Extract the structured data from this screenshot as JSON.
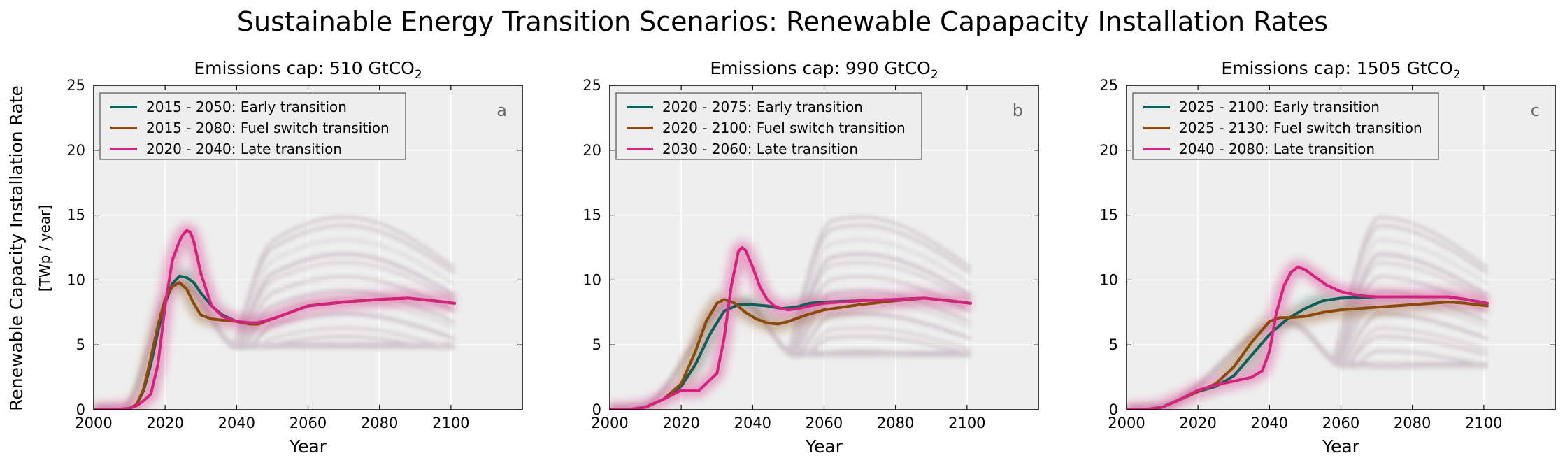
{
  "figure": {
    "title": "Sustainable Energy Transition Scenarios: Renewable Capapacity Installation Rates",
    "ylabel_main": "Renewable Capacity Installation Rate",
    "ylabel_unit": "[TWp / year]"
  },
  "colors": {
    "early": "#0f5e5a",
    "fuel": "#8a4a0a",
    "late": "#d4237f",
    "axes_bg": "#eeeeee",
    "grid": "#ffffff"
  },
  "chart_data": [
    {
      "type": "line",
      "panel_letter": "a",
      "title_prefix": "Emissions cap: 510 GtCO",
      "title_sub": "2",
      "xlabel": "Year",
      "xlim": [
        2000,
        2120
      ],
      "ylim": [
        0,
        25
      ],
      "xticks": [
        2000,
        2020,
        2040,
        2060,
        2080,
        2100
      ],
      "yticks": [
        0,
        5,
        10,
        15,
        20,
        25
      ],
      "legend_position": "upper-left",
      "series": [
        {
          "name": "2015 - 2050: Early transition",
          "color_key": "early",
          "x": [
            2000,
            2005,
            2010,
            2012,
            2014,
            2016,
            2018,
            2020,
            2022,
            2024,
            2026,
            2028,
            2030,
            2033,
            2036,
            2040,
            2044,
            2046,
            2050,
            2055,
            2060,
            2070,
            2080,
            2088,
            2095,
            2101
          ],
          "y": [
            0,
            0,
            0.1,
            0.4,
            1.5,
            3.5,
            6.0,
            8.2,
            9.7,
            10.3,
            10.2,
            9.8,
            9.0,
            8.0,
            7.3,
            6.8,
            6.6,
            6.7,
            7.0,
            7.5,
            8.0,
            8.3,
            8.5,
            8.6,
            8.4,
            8.2
          ]
        },
        {
          "name": "2015 - 2080: Fuel switch transition",
          "color_key": "fuel",
          "x": [
            2000,
            2005,
            2010,
            2012,
            2014,
            2016,
            2018,
            2020,
            2022,
            2024,
            2026,
            2028,
            2030,
            2033,
            2036,
            2040,
            2044,
            2046,
            2050,
            2055,
            2060,
            2070,
            2080,
            2088,
            2095,
            2101
          ],
          "y": [
            0,
            0,
            0.1,
            0.4,
            1.6,
            4.0,
            6.5,
            8.5,
            9.5,
            9.8,
            9.3,
            8.2,
            7.3,
            7.0,
            6.9,
            6.8,
            6.6,
            6.6,
            7.0,
            7.5,
            8.0,
            8.3,
            8.5,
            8.6,
            8.4,
            8.2
          ]
        },
        {
          "name": "2020 - 2040: Late transition",
          "color_key": "late",
          "x": [
            2000,
            2005,
            2010,
            2012,
            2014,
            2016,
            2018,
            2020,
            2022,
            2024,
            2025,
            2026,
            2027,
            2028,
            2030,
            2033,
            2036,
            2040,
            2044,
            2046,
            2050,
            2055,
            2060,
            2070,
            2080,
            2088,
            2095,
            2101
          ],
          "y": [
            0,
            0,
            0.1,
            0.3,
            0.7,
            1.2,
            3.5,
            8.0,
            11.5,
            13.0,
            13.5,
            13.8,
            13.7,
            13.0,
            10.5,
            8.0,
            7.2,
            6.8,
            6.7,
            6.7,
            7.0,
            7.5,
            8.0,
            8.3,
            8.5,
            8.6,
            8.4,
            8.2
          ]
        }
      ]
    },
    {
      "type": "line",
      "panel_letter": "b",
      "title_prefix": "Emissions cap: 990 GtCO",
      "title_sub": "2",
      "xlabel": "Year",
      "xlim": [
        2000,
        2120
      ],
      "ylim": [
        0,
        25
      ],
      "xticks": [
        2000,
        2020,
        2040,
        2060,
        2080,
        2100
      ],
      "yticks": [
        0,
        5,
        10,
        15,
        20,
        25
      ],
      "legend_position": "upper-left",
      "series": [
        {
          "name": "2020 - 2075: Early transition",
          "color_key": "early",
          "x": [
            2000,
            2005,
            2010,
            2015,
            2020,
            2024,
            2028,
            2032,
            2036,
            2040,
            2044,
            2048,
            2052,
            2056,
            2060,
            2070,
            2080,
            2088,
            2095,
            2101
          ],
          "y": [
            0,
            0,
            0.2,
            0.8,
            1.8,
            3.5,
            5.8,
            7.6,
            8.1,
            8.1,
            8.0,
            7.8,
            7.9,
            8.2,
            8.3,
            8.4,
            8.5,
            8.6,
            8.4,
            8.2
          ]
        },
        {
          "name": "2020 - 2100: Fuel switch transition",
          "color_key": "fuel",
          "x": [
            2000,
            2005,
            2010,
            2015,
            2020,
            2024,
            2027,
            2030,
            2032,
            2035,
            2038,
            2041,
            2044,
            2047,
            2050,
            2055,
            2060,
            2070,
            2080,
            2088,
            2095,
            2101
          ],
          "y": [
            0,
            0,
            0.2,
            0.8,
            2.0,
            4.5,
            6.8,
            8.2,
            8.5,
            8.2,
            7.5,
            7.0,
            6.7,
            6.6,
            6.8,
            7.3,
            7.7,
            8.1,
            8.4,
            8.6,
            8.4,
            8.2
          ]
        },
        {
          "name": "2030 - 2060: Late transition",
          "color_key": "late",
          "x": [
            2000,
            2005,
            2010,
            2015,
            2020,
            2025,
            2030,
            2032,
            2034,
            2036,
            2037,
            2038,
            2040,
            2042,
            2044,
            2046,
            2048,
            2050,
            2053,
            2056,
            2060,
            2070,
            2080,
            2088,
            2095,
            2101
          ],
          "y": [
            0,
            0,
            0.2,
            0.8,
            1.5,
            1.5,
            2.8,
            5.5,
            9.5,
            12.2,
            12.5,
            12.3,
            11.0,
            9.5,
            8.5,
            8.0,
            7.8,
            7.7,
            7.8,
            8.0,
            8.2,
            8.4,
            8.5,
            8.6,
            8.4,
            8.2
          ]
        }
      ]
    },
    {
      "type": "line",
      "panel_letter": "c",
      "title_prefix": "Emissions cap: 1505 GtCO",
      "title_sub": "2",
      "xlabel": "Year",
      "xlim": [
        2000,
        2120
      ],
      "ylim": [
        0,
        25
      ],
      "xticks": [
        2000,
        2020,
        2040,
        2060,
        2080,
        2100
      ],
      "yticks": [
        0,
        5,
        10,
        15,
        20,
        25
      ],
      "legend_position": "upper-left",
      "series": [
        {
          "name": "2025 - 2100: Early transition",
          "color_key": "early",
          "x": [
            2000,
            2005,
            2010,
            2015,
            2020,
            2025,
            2030,
            2035,
            2040,
            2045,
            2050,
            2055,
            2060,
            2070,
            2080,
            2090,
            2095,
            2101
          ],
          "y": [
            0,
            0,
            0.2,
            0.8,
            1.4,
            1.8,
            2.6,
            4.2,
            5.8,
            7.0,
            7.8,
            8.4,
            8.6,
            8.7,
            8.7,
            8.7,
            8.5,
            8.2
          ]
        },
        {
          "name": "2025 - 2130: Fuel switch transition",
          "color_key": "fuel",
          "x": [
            2000,
            2005,
            2010,
            2015,
            2020,
            2025,
            2030,
            2035,
            2040,
            2043,
            2046,
            2050,
            2055,
            2060,
            2070,
            2080,
            2090,
            2095,
            2101
          ],
          "y": [
            0,
            0,
            0.2,
            0.8,
            1.4,
            2.0,
            3.3,
            5.2,
            6.8,
            7.1,
            7.1,
            7.2,
            7.5,
            7.7,
            7.9,
            8.1,
            8.3,
            8.2,
            8.0
          ]
        },
        {
          "name": "2040 - 2080: Late transition",
          "color_key": "late",
          "x": [
            2000,
            2005,
            2010,
            2015,
            2020,
            2025,
            2030,
            2035,
            2038,
            2040,
            2042,
            2044,
            2046,
            2048,
            2050,
            2053,
            2056,
            2060,
            2065,
            2070,
            2080,
            2090,
            2095,
            2101
          ],
          "y": [
            0,
            0,
            0.2,
            0.8,
            1.5,
            1.9,
            2.2,
            2.5,
            3.0,
            4.5,
            7.5,
            9.5,
            10.6,
            11.0,
            10.8,
            10.2,
            9.6,
            9.1,
            8.8,
            8.7,
            8.7,
            8.7,
            8.5,
            8.2
          ]
        }
      ]
    }
  ]
}
